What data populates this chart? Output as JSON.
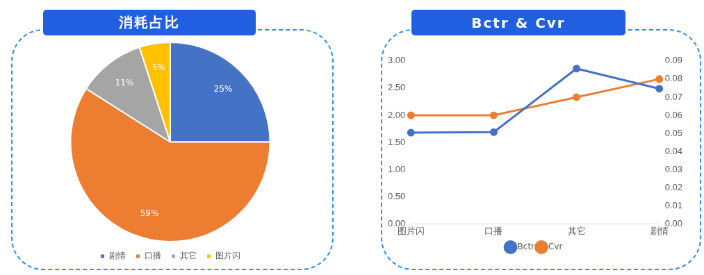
{
  "chart_data": [
    {
      "type": "pie",
      "title": "消耗占比",
      "categories": [
        "剧情",
        "口播",
        "其它",
        "图片闪"
      ],
      "values": [
        25,
        59,
        11,
        5
      ],
      "colors": [
        "#4472c4",
        "#ed7d31",
        "#a5a5a5",
        "#ffc000"
      ],
      "value_labels": [
        "25%",
        "59%",
        "11%",
        "5%"
      ],
      "legend": "bottom"
    },
    {
      "type": "line",
      "title": "Bctr & Cvr",
      "categories": [
        "图片闪",
        "口播",
        "其它",
        "剧情"
      ],
      "series": [
        {
          "name": "Bctr",
          "color": "#4472c4",
          "values": [
            1.68,
            1.69,
            2.86,
            2.49
          ]
        },
        {
          "name": "Cvr",
          "color": "#ed7d31",
          "values": [
            0.06,
            0.06,
            0.07,
            0.08
          ],
          "axis": "y2"
        }
      ],
      "ylim": [
        0,
        3
      ],
      "yticks": [
        {
          "value": 0,
          "label": "0.00"
        },
        {
          "value": 0.5,
          "label": "0.50"
        },
        {
          "value": 1,
          "label": "1.00"
        },
        {
          "value": 1.5,
          "label": "1.50"
        },
        {
          "value": 2,
          "label": "2.00"
        },
        {
          "value": 2.5,
          "label": "2.50"
        },
        {
          "value": 3,
          "label": "3.00"
        }
      ],
      "y2lim": [
        0,
        0.09
      ],
      "y2ticks": [
        {
          "value": 0,
          "label": "0.00"
        },
        {
          "value": 0.01,
          "label": "0.01"
        },
        {
          "value": 0.02,
          "label": "0.02"
        },
        {
          "value": 0.03,
          "label": "0.03"
        },
        {
          "value": 0.04,
          "label": "0.04"
        },
        {
          "value": 0.05,
          "label": "0.05"
        },
        {
          "value": 0.06,
          "label": "0.06"
        },
        {
          "value": 0.07,
          "label": "0.07"
        },
        {
          "value": 0.08,
          "label": "0.08"
        },
        {
          "value": 0.09,
          "label": "0.09"
        }
      ],
      "grid": false,
      "legend": "bottom",
      "marker": "circle",
      "line_style": "solid"
    }
  ]
}
